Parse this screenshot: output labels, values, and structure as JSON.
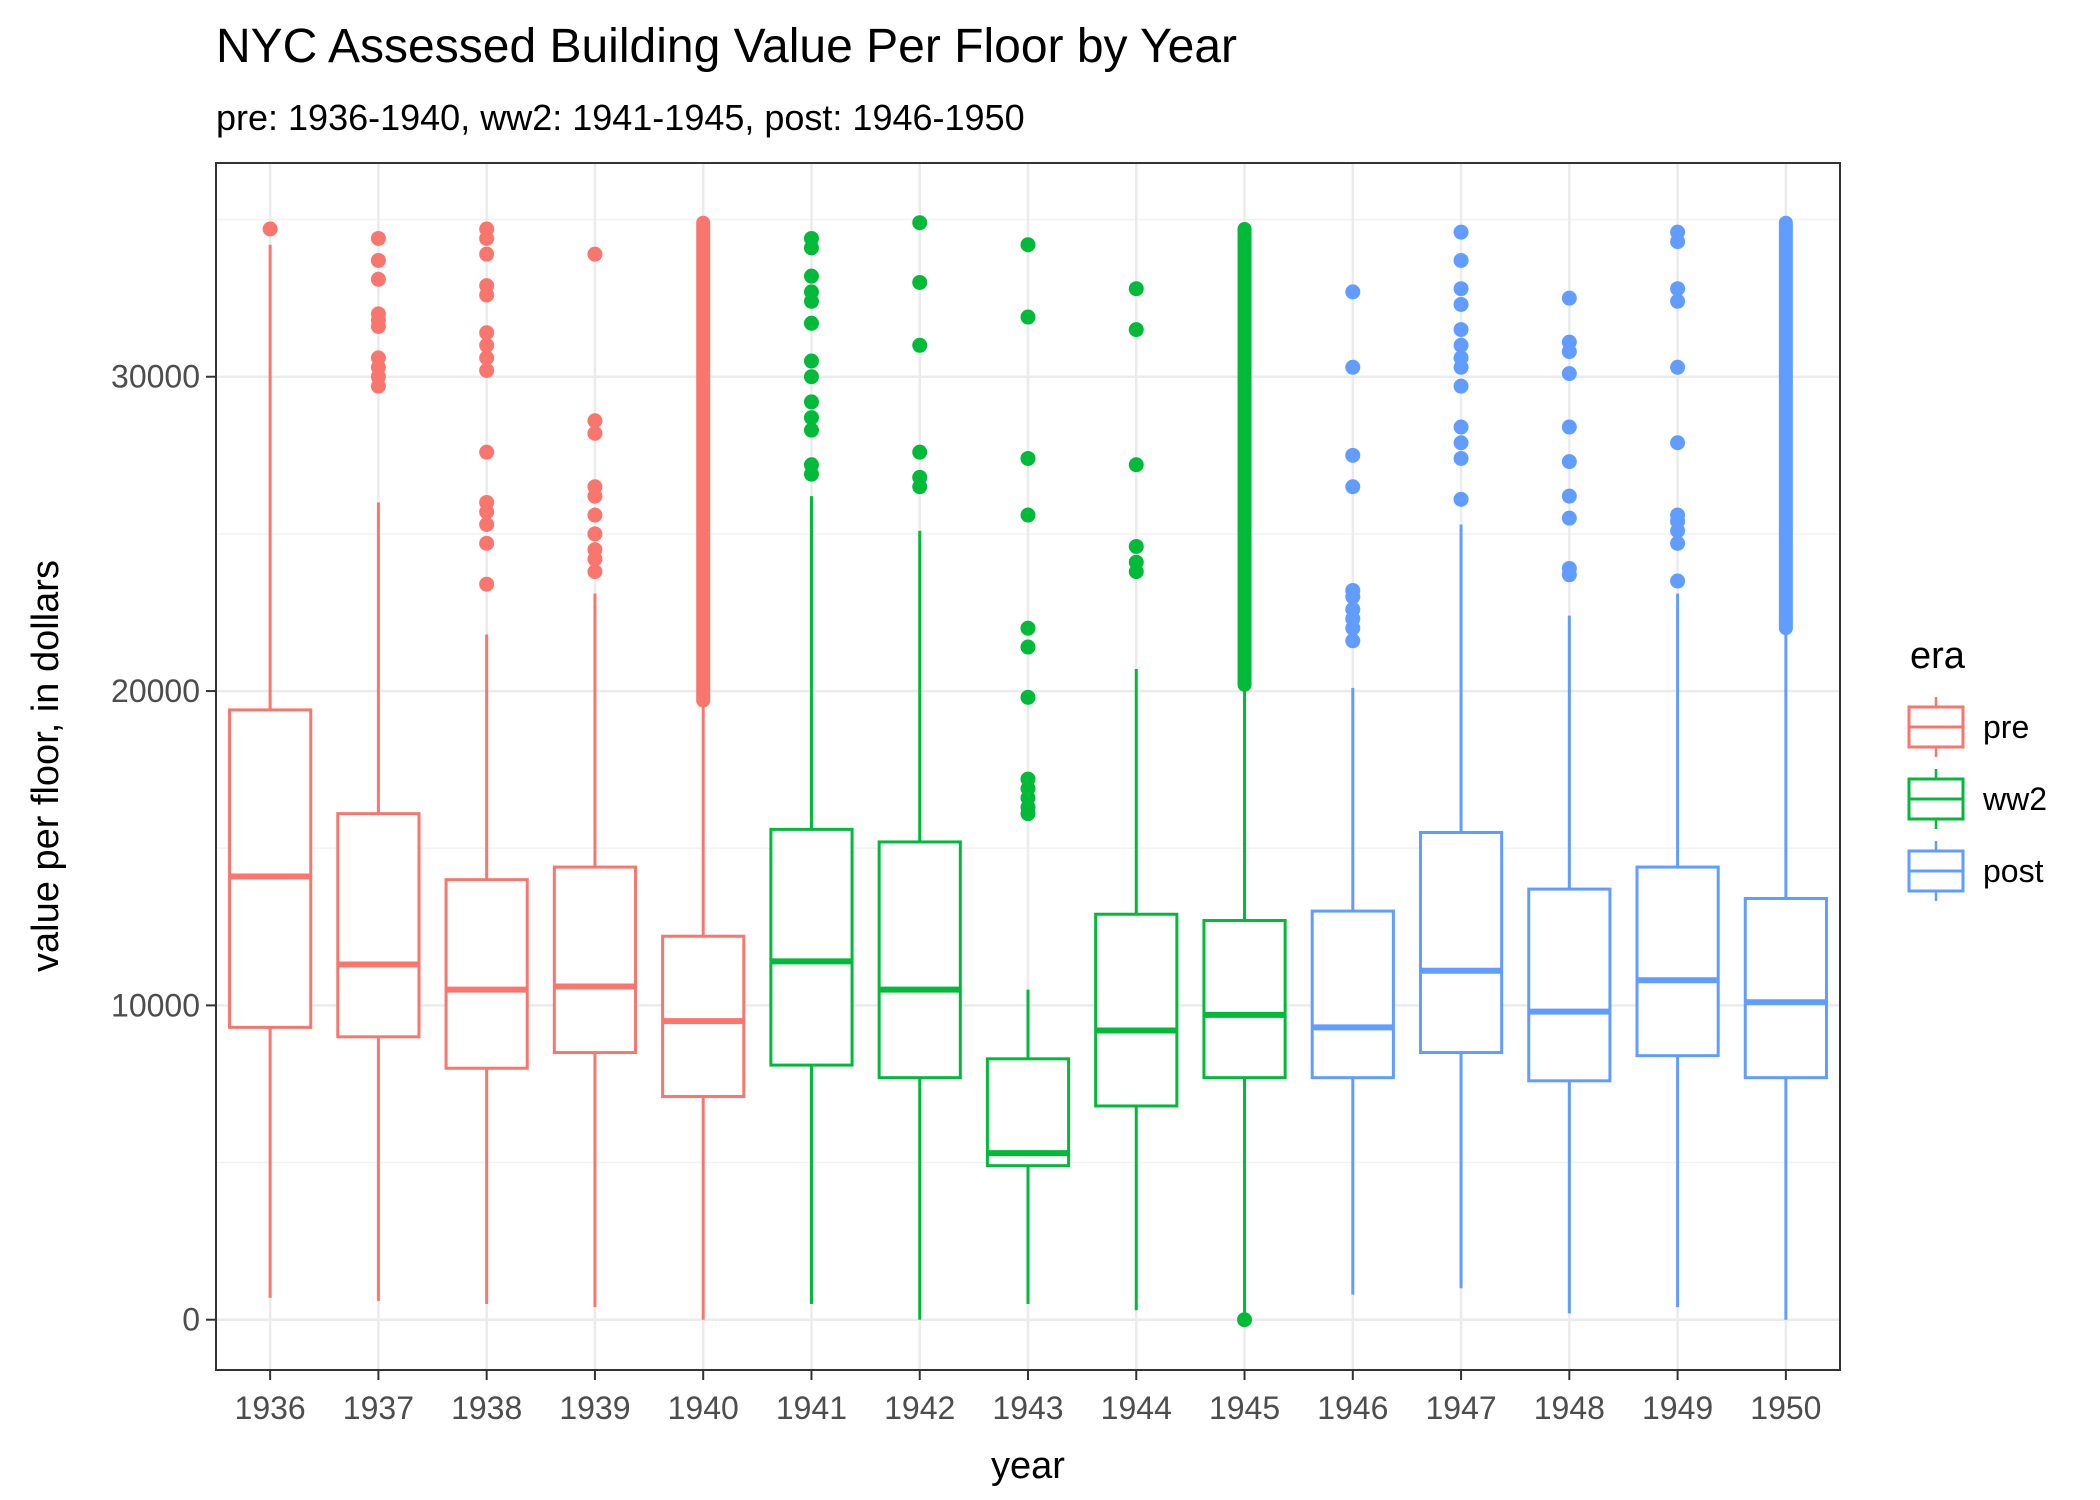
{
  "chart_data": {
    "type": "box",
    "title": "NYC Assessed Building Value Per Floor by Year",
    "subtitle": "pre: 1936-1940, ww2: 1941-1945, post: 1946-1950",
    "xlabel": "year",
    "ylabel": "value per floor, in dollars",
    "ylim": [
      -1600,
      36800
    ],
    "yticks": [
      0,
      10000,
      20000,
      30000
    ],
    "ytick_labels": [
      "0",
      "10000",
      "20000",
      "30000"
    ],
    "grid": true,
    "legend": {
      "title": "era",
      "position": "right",
      "entries": [
        {
          "label": "pre",
          "color": "#F8766D"
        },
        {
          "label": "ww2",
          "color": "#00BA38"
        },
        {
          "label": "post",
          "color": "#619CFF"
        }
      ]
    },
    "categories": [
      "1936",
      "1937",
      "1938",
      "1939",
      "1940",
      "1941",
      "1942",
      "1943",
      "1944",
      "1945",
      "1946",
      "1947",
      "1948",
      "1949",
      "1950"
    ],
    "boxes": [
      {
        "year": "1936",
        "era": "pre",
        "min": 700,
        "q1": 9300,
        "median": 14100,
        "q3": 19400,
        "max": 34200,
        "outliers": [
          34700
        ]
      },
      {
        "year": "1937",
        "era": "pre",
        "min": 600,
        "q1": 9000,
        "median": 11300,
        "q3": 16100,
        "max": 26000,
        "outliers": [
          29700,
          30000,
          30300,
          30600,
          31600,
          31800,
          32000,
          33100,
          33700,
          34400
        ]
      },
      {
        "year": "1938",
        "era": "pre",
        "min": 500,
        "q1": 8000,
        "median": 10500,
        "q3": 14000,
        "max": 21800,
        "outliers": [
          23400,
          24700,
          25300,
          25700,
          26000,
          27600,
          30200,
          30600,
          31000,
          31400,
          32600,
          32900,
          33900,
          34400,
          34700
        ]
      },
      {
        "year": "1939",
        "era": "pre",
        "min": 400,
        "q1": 8500,
        "median": 10600,
        "q3": 14400,
        "max": 23100,
        "outliers": [
          23800,
          24200,
          24500,
          25000,
          25600,
          26200,
          26500,
          28200,
          28600,
          33900
        ]
      },
      {
        "year": "1940",
        "era": "pre",
        "min": 0,
        "q1": 7100,
        "median": 9500,
        "q3": 12200,
        "max": 19700,
        "outliers": [],
        "outlier_band": [
          19700,
          34900
        ]
      },
      {
        "year": "1941",
        "era": "ww2",
        "min": 500,
        "q1": 8100,
        "median": 11400,
        "q3": 15600,
        "max": 26200,
        "outliers": [
          26900,
          27200,
          28300,
          28700,
          29200,
          30000,
          30500,
          31700,
          32400,
          32700,
          33200,
          34100,
          34400
        ]
      },
      {
        "year": "1942",
        "era": "ww2",
        "min": 0,
        "q1": 7700,
        "median": 10500,
        "q3": 15200,
        "max": 25100,
        "outliers": [
          26500,
          26800,
          27600,
          31000,
          33000,
          34900
        ]
      },
      {
        "year": "1943",
        "era": "ww2",
        "min": 500,
        "q1": 4900,
        "median": 5300,
        "q3": 8300,
        "max": 10500,
        "outliers": [
          16100,
          16300,
          16600,
          16900,
          17200,
          19800,
          21400,
          22000,
          25600,
          27400,
          31900,
          34200
        ]
      },
      {
        "year": "1944",
        "era": "ww2",
        "min": 300,
        "q1": 6800,
        "median": 9200,
        "q3": 12900,
        "max": 20700,
        "outliers": [
          23800,
          24100,
          24600,
          27200,
          31500,
          32800
        ]
      },
      {
        "year": "1945",
        "era": "ww2",
        "min": 0,
        "q1": 7700,
        "median": 9700,
        "q3": 12700,
        "max": 20100,
        "outliers": [
          0
        ],
        "outlier_band": [
          20200,
          34700
        ]
      },
      {
        "year": "1946",
        "era": "post",
        "min": 800,
        "q1": 7700,
        "median": 9300,
        "q3": 13000,
        "max": 20100,
        "outliers": [
          21600,
          22000,
          22300,
          22600,
          23000,
          23200,
          26500,
          27500,
          30300,
          32700
        ]
      },
      {
        "year": "1947",
        "era": "post",
        "min": 1000,
        "q1": 8500,
        "median": 11100,
        "q3": 15500,
        "max": 25300,
        "outliers": [
          26100,
          27400,
          27900,
          28400,
          29700,
          30300,
          30600,
          31000,
          31500,
          32300,
          32800,
          33700,
          34600
        ]
      },
      {
        "year": "1948",
        "era": "post",
        "min": 200,
        "q1": 7600,
        "median": 9800,
        "q3": 13700,
        "max": 22400,
        "outliers": [
          23700,
          23900,
          25500,
          26200,
          27300,
          28400,
          30100,
          30800,
          31100,
          32500
        ]
      },
      {
        "year": "1949",
        "era": "post",
        "min": 400,
        "q1": 8400,
        "median": 10800,
        "q3": 14400,
        "max": 23100,
        "outliers": [
          23500,
          24700,
          25100,
          25400,
          25600,
          27900,
          30300,
          32400,
          32800,
          34300,
          34600
        ]
      },
      {
        "year": "1950",
        "era": "post",
        "min": 0,
        "q1": 7700,
        "median": 10100,
        "q3": 13400,
        "max": 21900,
        "outliers": [],
        "outlier_band": [
          22000,
          34900
        ]
      }
    ]
  }
}
